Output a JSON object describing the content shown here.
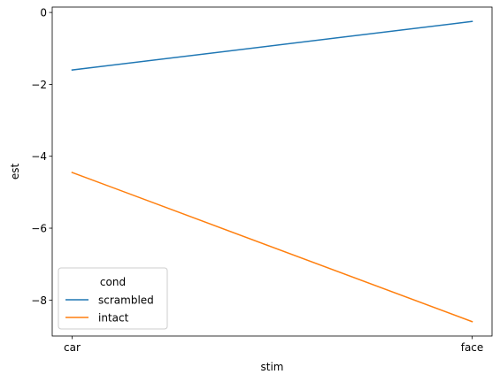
{
  "chart_data": {
    "type": "line",
    "xlabel": "stim",
    "ylabel": "est",
    "categories": [
      "car",
      "face"
    ],
    "ylim": [
      -9,
      0.15
    ],
    "yticks": [
      0,
      -2,
      -4,
      -6,
      -8
    ],
    "ytick_labels": [
      "0",
      "−2",
      "−4",
      "−6",
      "−8"
    ],
    "grid": false,
    "legend": {
      "title": "cond",
      "placement": "lower-left"
    },
    "series": [
      {
        "name": "scrambled",
        "color": "#1f77b4",
        "values": [
          -1.6,
          -0.25
        ]
      },
      {
        "name": "intact",
        "color": "#ff7f0e",
        "values": [
          -4.45,
          -8.6
        ]
      }
    ]
  }
}
